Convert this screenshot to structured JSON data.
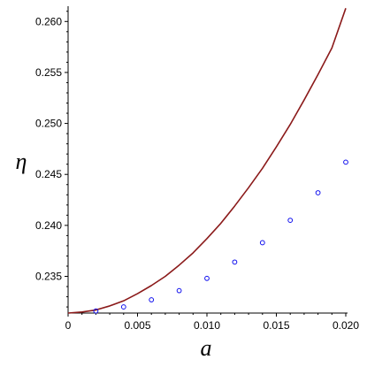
{
  "chart_data": {
    "type": "line",
    "title": "",
    "xlabel": "a",
    "ylabel": "η",
    "xlim": [
      0,
      0.02
    ],
    "ylim": [
      0.2314,
      0.2615
    ],
    "grid": false,
    "x_ticks": [
      0,
      0.005,
      0.01,
      0.015,
      0.02
    ],
    "x_tick_labels": [
      "0",
      "0.005",
      "0.010",
      "0.015",
      "0.020"
    ],
    "y_ticks": [
      0.235,
      0.24,
      0.245,
      0.25,
      0.255,
      0.26
    ],
    "y_tick_labels": [
      "0.235",
      "0.240",
      "0.245",
      "0.250",
      "0.255",
      "0.260"
    ],
    "series": [
      {
        "kind": "line",
        "color": "#8b1a1a",
        "x": [
          0,
          0.001,
          0.002,
          0.003,
          0.004,
          0.005,
          0.006,
          0.007,
          0.008,
          0.009,
          0.01,
          0.011,
          0.012,
          0.013,
          0.014,
          0.015,
          0.016,
          0.017,
          0.018,
          0.019,
          0.02
        ],
        "y": [
          0.2314,
          0.2315,
          0.2317,
          0.2321,
          0.2326,
          0.2333,
          0.2341,
          0.235,
          0.2361,
          0.2373,
          0.2387,
          0.2402,
          0.2419,
          0.2437,
          0.2456,
          0.2477,
          0.2499,
          0.2523,
          0.2548,
          0.2574,
          0.2613
        ]
      },
      {
        "kind": "scatter",
        "color": "#1010ee",
        "x": [
          0.002,
          0.004,
          0.006,
          0.008,
          0.01,
          0.012,
          0.014,
          0.016,
          0.018,
          0.02
        ],
        "y": [
          0.2316,
          0.232,
          0.2327,
          0.2336,
          0.2348,
          0.2364,
          0.2383,
          0.2405,
          0.2432,
          0.2462
        ]
      }
    ]
  }
}
